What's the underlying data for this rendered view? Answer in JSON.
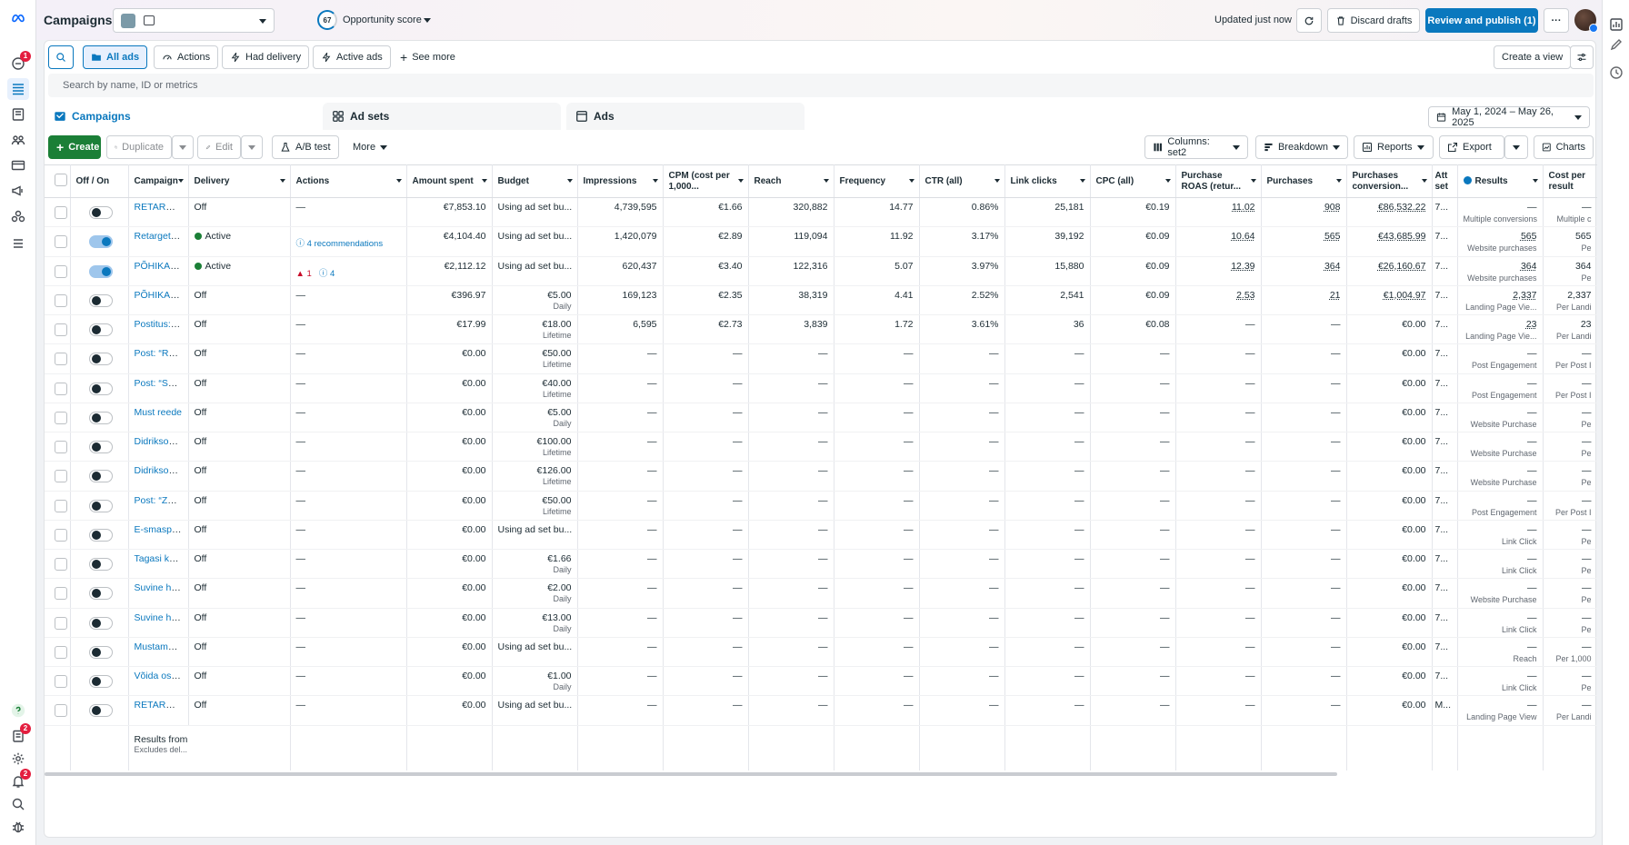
{
  "header": {
    "title": "Campaigns",
    "score_value": "67",
    "score_label": "Opportunity score",
    "updated": "Updated just now",
    "discard": "Discard drafts",
    "review": "Review and publish (1)",
    "more": "···"
  },
  "filters": {
    "all_ads": "All ads",
    "actions": "Actions",
    "had_delivery": "Had delivery",
    "active_ads": "Active ads",
    "see_more": "See more",
    "create_view": "Create a view"
  },
  "search": {
    "placeholder": "Search by name, ID or metrics"
  },
  "levels": {
    "campaigns": "Campaigns",
    "ad_sets": "Ad sets",
    "ads": "Ads"
  },
  "date_range": "May 1, 2024 – May 26, 2025",
  "actionbar": {
    "create": "Create",
    "duplicate": "Duplicate",
    "edit": "Edit",
    "ab_test": "A/B test",
    "more": "More",
    "columns": "Columns: set2",
    "breakdown": "Breakdown",
    "reports": "Reports",
    "export": "Export",
    "charts": "Charts"
  },
  "columns": [
    "",
    "Off / On",
    "Campaign",
    "Delivery",
    "Actions",
    "Amount spent",
    "Budget",
    "Impressions",
    "CPM (cost per 1,000...",
    "Reach",
    "Frequency",
    "CTR (all)",
    "Link clicks",
    "CPC (all)",
    "Purchase ROAS (retur...",
    "Purchases",
    "Purchases conversion...",
    "Att set",
    "Results",
    "Cost per result"
  ],
  "rows": [
    {
      "on": false,
      "name": "RETARGE...",
      "delivery": "Off",
      "active": false,
      "actions": "—",
      "warn": "",
      "rec": "",
      "spent": "€7,853.10",
      "budget": "Using ad set bu...",
      "budget_sub": "",
      "impr": "4,739,595",
      "cpm": "€1.66",
      "reach": "320,882",
      "freq": "14.77",
      "ctr": "0.86%",
      "clicks": "25,181",
      "cpc": "€0.19",
      "roas": "11.02",
      "purch": "908",
      "pconv": "€86,532.22",
      "att": "7...",
      "results": "—",
      "results_sub": "Multiple conversions",
      "cost_sub": "Multiple c"
    },
    {
      "on": true,
      "name": "Retargetin...",
      "delivery": "Active",
      "active": true,
      "actions": "",
      "warn": "",
      "rec": "4 recommendations",
      "spent": "€4,104.40",
      "budget": "Using ad set bu...",
      "budget_sub": "",
      "impr": "1,420,079",
      "cpm": "€2.89",
      "reach": "119,094",
      "freq": "11.92",
      "ctr": "3.17%",
      "clicks": "39,192",
      "cpc": "€0.09",
      "roas": "10.64",
      "purch": "565",
      "pconv": "€43,685.99",
      "att": "7...",
      "results": "565",
      "results_sub": "Website purchases",
      "cost_sub": "Pe"
    },
    {
      "on": true,
      "name": "PÕHIKAM...",
      "delivery": "Active",
      "active": true,
      "actions": "",
      "warn": "1",
      "rec": "4",
      "spent": "€2,112.12",
      "budget": "Using ad set bu...",
      "budget_sub": "",
      "impr": "620,437",
      "cpm": "€3.40",
      "reach": "122,316",
      "freq": "5.07",
      "ctr": "3.97%",
      "clicks": "15,880",
      "cpc": "€0.09",
      "roas": "12.39",
      "purch": "364",
      "pconv": "€26,160.67",
      "att": "7...",
      "results": "364",
      "results_sub": "Website purchases",
      "cost_sub": "Pe"
    },
    {
      "on": false,
      "name": "PÕHIKAM...",
      "delivery": "Off",
      "active": false,
      "actions": "—",
      "warn": "",
      "rec": "",
      "spent": "€396.97",
      "budget": "€5.00",
      "budget_sub": "Daily",
      "impr": "169,123",
      "cpm": "€2.35",
      "reach": "38,319",
      "freq": "4.41",
      "ctr": "2.52%",
      "clicks": "2,541",
      "cpc": "€0.09",
      "roas": "2.53",
      "purch": "21",
      "pconv": "€1,004.97",
      "att": "7...",
      "results": "2,337",
      "results_sub": "Landing Page Vie...",
      "cost_sub": "Per Landi"
    },
    {
      "on": false,
      "name": "Postitus: „...",
      "delivery": "Off",
      "active": false,
      "actions": "—",
      "warn": "",
      "rec": "",
      "spent": "€17.99",
      "budget": "€18.00",
      "budget_sub": "Lifetime",
      "impr": "6,595",
      "cpm": "€2.73",
      "reach": "3,839",
      "freq": "1.72",
      "ctr": "3.61%",
      "clicks": "36",
      "cpc": "€0.08",
      "roas": "—",
      "purch": "—",
      "pconv": "€0.00",
      "att": "7...",
      "results": "23",
      "results_sub": "Landing Page Vie...",
      "cost_sub": "Per Landi"
    },
    {
      "on": false,
      "name": "Post: “Ree...",
      "delivery": "Off",
      "active": false,
      "actions": "—",
      "warn": "",
      "rec": "",
      "spent": "€0.00",
      "budget": "€50.00",
      "budget_sub": "Lifetime",
      "impr": "—",
      "cpm": "—",
      "reach": "—",
      "freq": "—",
      "ctr": "—",
      "clicks": "—",
      "cpc": "—",
      "roas": "—",
      "purch": "—",
      "pconv": "€0.00",
      "att": "7...",
      "results": "—",
      "results_sub": "Post Engagement",
      "cost_sub": "Per Post I"
    },
    {
      "on": false,
      "name": "Post: “Soe...",
      "delivery": "Off",
      "active": false,
      "actions": "—",
      "warn": "",
      "rec": "",
      "spent": "€0.00",
      "budget": "€40.00",
      "budget_sub": "Lifetime",
      "impr": "—",
      "cpm": "—",
      "reach": "—",
      "freq": "—",
      "ctr": "—",
      "clicks": "—",
      "cpc": "—",
      "roas": "—",
      "purch": "—",
      "pconv": "€0.00",
      "att": "7...",
      "results": "—",
      "results_sub": "Post Engagement",
      "cost_sub": "Per Post I"
    },
    {
      "on": false,
      "name": "Must reede",
      "delivery": "Off",
      "active": false,
      "actions": "—",
      "warn": "",
      "rec": "",
      "spent": "€0.00",
      "budget": "€5.00",
      "budget_sub": "Daily",
      "impr": "—",
      "cpm": "—",
      "reach": "—",
      "freq": "—",
      "ctr": "—",
      "clicks": "—",
      "cpc": "—",
      "roas": "—",
      "purch": "—",
      "pconv": "€0.00",
      "att": "7...",
      "results": "—",
      "results_sub": "Website Purchase",
      "cost_sub": "Pe"
    },
    {
      "on": false,
      "name": "Didriksons...",
      "delivery": "Off",
      "active": false,
      "actions": "—",
      "warn": "",
      "rec": "",
      "spent": "€0.00",
      "budget": "€100.00",
      "budget_sub": "Lifetime",
      "impr": "—",
      "cpm": "—",
      "reach": "—",
      "freq": "—",
      "ctr": "—",
      "clicks": "—",
      "cpc": "—",
      "roas": "—",
      "purch": "—",
      "pconv": "€0.00",
      "att": "7...",
      "results": "—",
      "results_sub": "Website Purchase",
      "cost_sub": "Pe"
    },
    {
      "on": false,
      "name": "Didriksons...",
      "delivery": "Off",
      "active": false,
      "actions": "—",
      "warn": "",
      "rec": "",
      "spent": "€0.00",
      "budget": "€126.00",
      "budget_sub": "Lifetime",
      "impr": "—",
      "cpm": "—",
      "reach": "—",
      "freq": "—",
      "ctr": "—",
      "clicks": "—",
      "cpc": "—",
      "roas": "—",
      "purch": "—",
      "pconv": "€0.00",
      "att": "7...",
      "results": "—",
      "results_sub": "Website Purchase",
      "cost_sub": "Pe"
    },
    {
      "on": false,
      "name": "Post: “Zep...",
      "delivery": "Off",
      "active": false,
      "actions": "—",
      "warn": "",
      "rec": "",
      "spent": "€0.00",
      "budget": "€50.00",
      "budget_sub": "Lifetime",
      "impr": "—",
      "cpm": "—",
      "reach": "—",
      "freq": "—",
      "ctr": "—",
      "clicks": "—",
      "cpc": "—",
      "roas": "—",
      "purch": "—",
      "pconv": "€0.00",
      "att": "7...",
      "results": "—",
      "results_sub": "Post Engagement",
      "cost_sub": "Per Post I"
    },
    {
      "on": false,
      "name": "E-smaspä...",
      "delivery": "Off",
      "active": false,
      "actions": "—",
      "warn": "",
      "rec": "",
      "spent": "€0.00",
      "budget": "Using ad set bu...",
      "budget_sub": "",
      "impr": "—",
      "cpm": "—",
      "reach": "—",
      "freq": "—",
      "ctr": "—",
      "clicks": "—",
      "cpc": "—",
      "roas": "—",
      "purch": "—",
      "pconv": "€0.00",
      "att": "7...",
      "results": "—",
      "results_sub": "Link Click",
      "cost_sub": "Pe"
    },
    {
      "on": false,
      "name": "Tagasi koo...",
      "delivery": "Off",
      "active": false,
      "actions": "—",
      "warn": "",
      "rec": "",
      "spent": "€0.00",
      "budget": "€1.66",
      "budget_sub": "Daily",
      "impr": "—",
      "cpm": "—",
      "reach": "—",
      "freq": "—",
      "ctr": "—",
      "clicks": "—",
      "cpc": "—",
      "roas": "—",
      "purch": "—",
      "pconv": "€0.00",
      "att": "7...",
      "results": "—",
      "results_sub": "Link Click",
      "cost_sub": "Pe"
    },
    {
      "on": false,
      "name": "Suvine ho...",
      "delivery": "Off",
      "active": false,
      "actions": "—",
      "warn": "",
      "rec": "",
      "spent": "€0.00",
      "budget": "€2.00",
      "budget_sub": "Daily",
      "impr": "—",
      "cpm": "—",
      "reach": "—",
      "freq": "—",
      "ctr": "—",
      "clicks": "—",
      "cpc": "—",
      "roas": "—",
      "purch": "—",
      "pconv": "€0.00",
      "att": "7...",
      "results": "—",
      "results_sub": "Website Purchase",
      "cost_sub": "Pe"
    },
    {
      "on": false,
      "name": "Suvine ho...",
      "delivery": "Off",
      "active": false,
      "actions": "—",
      "warn": "",
      "rec": "",
      "spent": "€0.00",
      "budget": "€13.00",
      "budget_sub": "Daily",
      "impr": "—",
      "cpm": "—",
      "reach": "—",
      "freq": "—",
      "ctr": "—",
      "clicks": "—",
      "cpc": "—",
      "roas": "—",
      "purch": "—",
      "pconv": "€0.00",
      "att": "7...",
      "results": "—",
      "results_sub": "Link Click",
      "cost_sub": "Pe"
    },
    {
      "on": false,
      "name": "Mustamäe...",
      "delivery": "Off",
      "active": false,
      "actions": "—",
      "warn": "",
      "rec": "",
      "spent": "€0.00",
      "budget": "Using ad set bu...",
      "budget_sub": "",
      "impr": "—",
      "cpm": "—",
      "reach": "—",
      "freq": "—",
      "ctr": "—",
      "clicks": "—",
      "cpc": "—",
      "roas": "—",
      "purch": "—",
      "pconv": "€0.00",
      "att": "7...",
      "results": "—",
      "results_sub": "Reach",
      "cost_sub": "Per 1,000"
    },
    {
      "on": false,
      "name": "Võida ostu...",
      "delivery": "Off",
      "active": false,
      "actions": "—",
      "warn": "",
      "rec": "",
      "spent": "€0.00",
      "budget": "€1.00",
      "budget_sub": "Daily",
      "impr": "—",
      "cpm": "—",
      "reach": "—",
      "freq": "—",
      "ctr": "—",
      "clicks": "—",
      "cpc": "—",
      "roas": "—",
      "purch": "—",
      "pconv": "€0.00",
      "att": "7...",
      "results": "—",
      "results_sub": "Link Click",
      "cost_sub": "Pe"
    },
    {
      "on": false,
      "name": "RETARGE...",
      "delivery": "Off",
      "active": false,
      "actions": "—",
      "warn": "",
      "rec": "",
      "spent": "€0.00",
      "budget": "Using ad set bu...",
      "budget_sub": "",
      "impr": "—",
      "cpm": "—",
      "reach": "—",
      "freq": "—",
      "ctr": "—",
      "clicks": "—",
      "cpc": "—",
      "roas": "—",
      "purch": "—",
      "pconv": "€0.00",
      "att": "M...",
      "results": "—",
      "results_sub": "Landing Page View",
      "cost_sub": "Per Landi"
    }
  ],
  "footer": {
    "main": "Results from",
    "sub": "Excludes del..."
  },
  "nav_badges": {
    "activity": "1",
    "reports": "2",
    "alerts": "2"
  },
  "colors": {
    "accent": "#0a78be",
    "create": "#1b7f37",
    "active_dot": "#1b7f37",
    "warn": "#c80a28"
  }
}
